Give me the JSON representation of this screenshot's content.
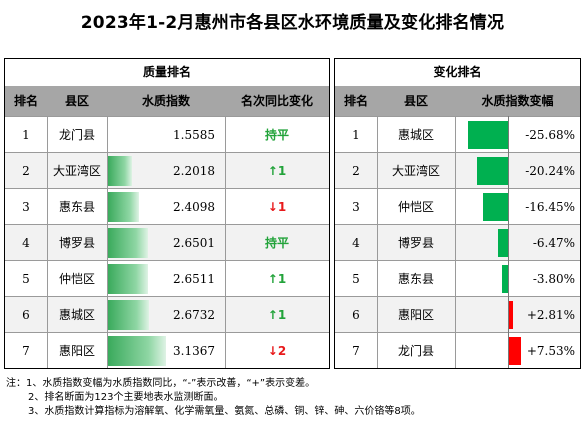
{
  "title": "2023年1-2月惠州市各县区水环境质量及变化排名情况",
  "quality": {
    "section_title": "质量排名",
    "headers": [
      "排名",
      "县区",
      "水质指数",
      "名次同比变化"
    ],
    "rows": [
      {
        "rank": "1",
        "county": "龙门县",
        "index": "1.5585",
        "index_value": 1.5585,
        "change": "持平",
        "dir": "flat"
      },
      {
        "rank": "2",
        "county": "大亚湾区",
        "index": "2.2018",
        "index_value": 2.2018,
        "change": "1",
        "dir": "up"
      },
      {
        "rank": "3",
        "county": "惠东县",
        "index": "2.4098",
        "index_value": 2.4098,
        "change": "1",
        "dir": "down"
      },
      {
        "rank": "4",
        "county": "博罗县",
        "index": "2.6501",
        "index_value": 2.6501,
        "change": "持平",
        "dir": "flat"
      },
      {
        "rank": "5",
        "county": "仲恺区",
        "index": "2.6511",
        "index_value": 2.6511,
        "change": "1",
        "dir": "up"
      },
      {
        "rank": "6",
        "county": "惠城区",
        "index": "2.6732",
        "index_value": 2.6732,
        "change": "1",
        "dir": "up"
      },
      {
        "rank": "7",
        "county": "惠阳区",
        "index": "3.1367",
        "index_value": 3.1367,
        "change": "2",
        "dir": "down"
      }
    ]
  },
  "change": {
    "section_title": "变化排名",
    "headers": [
      "排名",
      "县区",
      "水质指数变幅"
    ],
    "rows": [
      {
        "rank": "1",
        "county": "惠城区",
        "pct": "-25.68%",
        "pct_value": -25.68
      },
      {
        "rank": "2",
        "county": "大亚湾区",
        "pct": "-20.24%",
        "pct_value": -20.24
      },
      {
        "rank": "3",
        "county": "仲恺区",
        "pct": "-16.45%",
        "pct_value": -16.45
      },
      {
        "rank": "4",
        "county": "博罗县",
        "pct": "-6.47%",
        "pct_value": -6.47
      },
      {
        "rank": "5",
        "county": "惠东县",
        "pct": "-3.80%",
        "pct_value": -3.8
      },
      {
        "rank": "6",
        "county": "惠阳区",
        "pct": "+2.81%",
        "pct_value": 2.81
      },
      {
        "rank": "7",
        "county": "龙门县",
        "pct": "+7.53%",
        "pct_value": 7.53
      }
    ]
  },
  "notes": [
    "注：1、水质指数变幅为水质指数同比，“-”表示改善，“+”表示变差。",
    "2、排名断面为123个主要地表水监测断面。",
    "3、水质指数计算指标为溶解氧、化学需氧量、氨氮、总磷、铜、锌、砷、六价铬等8项。"
  ],
  "colors": {
    "header_bg": "#a6a6a6",
    "improve": "#22a33a",
    "worse": "#e8191b",
    "bad_bar": "#ff0000",
    "good_bar": "#00b050"
  },
  "icons": {
    "up": "up-arrow-icon",
    "down": "down-arrow-icon"
  }
}
